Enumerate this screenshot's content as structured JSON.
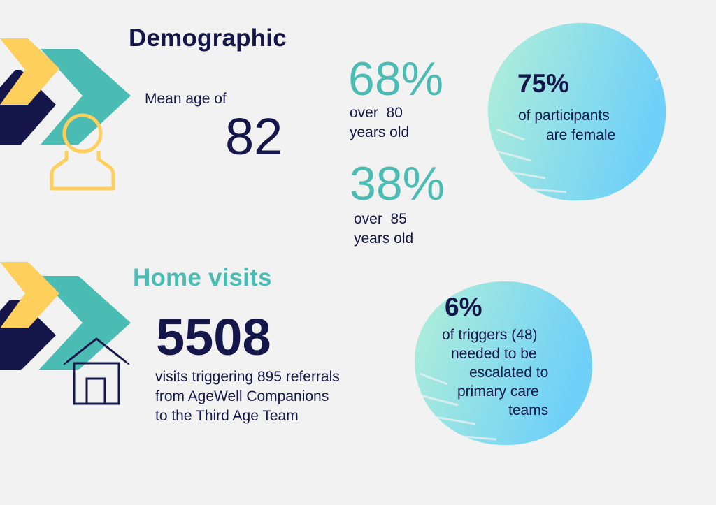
{
  "colors": {
    "background": "#f2f2f2",
    "navy": "#15164a",
    "teal": "#4bbcb3",
    "yellow": "#ffcf5c",
    "circle_gradient_start": "#a8ecd6",
    "circle_gradient_end": "#76d0f7"
  },
  "demographic": {
    "title": "Demographic",
    "mean_age_label": "Mean age of",
    "mean_age_value": "82",
    "stat1": {
      "value": "68%",
      "line1": "over  80",
      "line2": "years old"
    },
    "stat2": {
      "value": "38%",
      "line1": "over  85",
      "line2": "years old"
    },
    "circle": {
      "value": "75%",
      "line1": "of participants",
      "line2": "are female"
    },
    "icon": "person-icon"
  },
  "home_visits": {
    "title": "Home visits",
    "count": "5508",
    "line1": "visits triggering 895 referrals",
    "line2": "from AgeWell Companions",
    "line3": "to the Third Age Team",
    "circle": {
      "value": "6%",
      "line1": "of triggers (48)",
      "line2": "needed to be",
      "line3": "escalated to",
      "line4": "primary care",
      "line5": "teams"
    },
    "icon": "house-icon"
  }
}
